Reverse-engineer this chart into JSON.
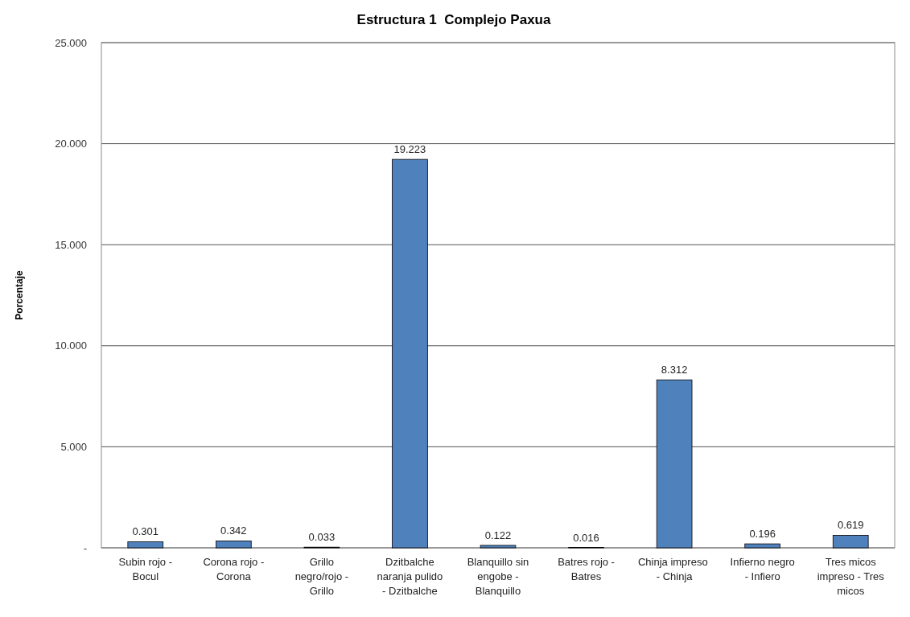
{
  "chart_data": {
    "type": "bar",
    "title": "Estructura 1  Complejo Paxua",
    "ylabel": "Porcentaje",
    "categories": [
      "Subin rojo - Bocul",
      "Corona rojo - Corona",
      "Grillo negro/rojo - Grillo",
      "Dzitbalche naranja pulido - Dzitbalche",
      "Blanquillo sin engobe - Blanquillo",
      "Batres rojo - Batres",
      "Chinja impreso  - Chinja",
      "Infierno negro - Infiero",
      "Tres micos impreso - Tres micos"
    ],
    "values": [
      0.301,
      0.342,
      0.033,
      19.223,
      0.122,
      0.016,
      8.312,
      0.196,
      0.619
    ],
    "color": "#4f81bd",
    "ylim": [
      0,
      25
    ],
    "yticks": [
      {
        "value": 0,
        "label": "-"
      },
      {
        "value": 5,
        "label": "5.000"
      },
      {
        "value": 10,
        "label": "10.000"
      },
      {
        "value": 15,
        "label": "15.000"
      },
      {
        "value": 20,
        "label": "20.000"
      },
      {
        "value": 25,
        "label": "25.000"
      }
    ],
    "grid": "y",
    "data_labels": true
  }
}
